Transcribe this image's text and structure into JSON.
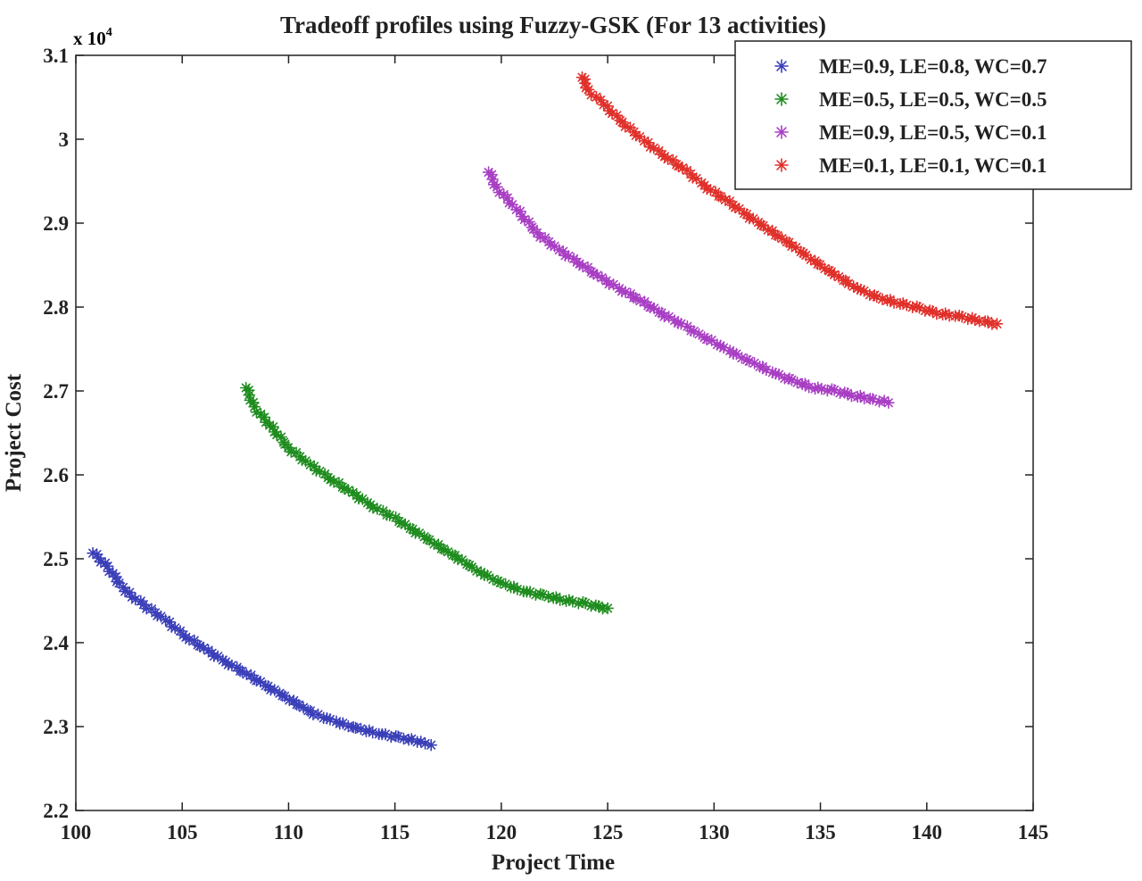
{
  "chart_data": {
    "type": "scatter",
    "title": "Tradeoff profiles using Fuzzy-GSK (For 13 activities)",
    "xlabel": "Project Time",
    "ylabel": "Project Cost",
    "y_multiplier_label": "x 10",
    "y_multiplier_exponent": "4",
    "xlim": [
      100,
      145
    ],
    "ylim": [
      2.2,
      3.1
    ],
    "x_ticks": [
      100,
      105,
      110,
      115,
      120,
      125,
      130,
      135,
      140,
      145
    ],
    "y_ticks": [
      2.2,
      2.3,
      2.4,
      2.5,
      2.6,
      2.7,
      2.8,
      2.9,
      3.0,
      3.1
    ],
    "x_tick_labels": [
      "100",
      "105",
      "110",
      "115",
      "120",
      "125",
      "130",
      "135",
      "140",
      "145"
    ],
    "y_tick_labels": [
      "2.2",
      "2.3",
      "2.4",
      "2.5",
      "2.6",
      "2.7",
      "2.8",
      "2.9",
      "3",
      "3.1"
    ],
    "marker": "*",
    "grid": false,
    "legend_position": "top-right",
    "series": [
      {
        "name": "ME=0.9, LE=0.8, WC=0.7",
        "color": "#3a3fb8",
        "points": [
          [
            100.8,
            2.508
          ],
          [
            101.5,
            2.49
          ],
          [
            102.3,
            2.462
          ],
          [
            103.2,
            2.445
          ],
          [
            104.2,
            2.427
          ],
          [
            105.2,
            2.407
          ],
          [
            106.2,
            2.39
          ],
          [
            107.2,
            2.375
          ],
          [
            108.2,
            2.36
          ],
          [
            109.2,
            2.345
          ],
          [
            110.2,
            2.33
          ],
          [
            111.2,
            2.315
          ],
          [
            112.2,
            2.306
          ],
          [
            113.2,
            2.298
          ],
          [
            114.2,
            2.292
          ],
          [
            115.2,
            2.287
          ],
          [
            116.0,
            2.283
          ],
          [
            116.7,
            2.278
          ]
        ]
      },
      {
        "name": "ME=0.5, LE=0.5, WC=0.5",
        "color": "#1e8c1e",
        "points": [
          [
            108.0,
            2.705
          ],
          [
            108.4,
            2.68
          ],
          [
            109.1,
            2.66
          ],
          [
            110.0,
            2.632
          ],
          [
            111.0,
            2.612
          ],
          [
            112.0,
            2.595
          ],
          [
            113.0,
            2.578
          ],
          [
            114.0,
            2.562
          ],
          [
            115.0,
            2.548
          ],
          [
            116.0,
            2.532
          ],
          [
            117.0,
            2.516
          ],
          [
            118.0,
            2.5
          ],
          [
            119.0,
            2.484
          ],
          [
            120.0,
            2.471
          ],
          [
            121.0,
            2.462
          ],
          [
            122.0,
            2.456
          ],
          [
            123.0,
            2.451
          ],
          [
            124.0,
            2.446
          ],
          [
            125.0,
            2.441
          ]
        ]
      },
      {
        "name": "ME=0.9, LE=0.5, WC=0.1",
        "color": "#a83ec4",
        "points": [
          [
            119.4,
            2.962
          ],
          [
            119.8,
            2.942
          ],
          [
            120.7,
            2.917
          ],
          [
            121.7,
            2.888
          ],
          [
            122.7,
            2.868
          ],
          [
            123.7,
            2.852
          ],
          [
            124.7,
            2.834
          ],
          [
            125.7,
            2.82
          ],
          [
            126.7,
            2.805
          ],
          [
            127.7,
            2.79
          ],
          [
            128.7,
            2.776
          ],
          [
            129.7,
            2.762
          ],
          [
            130.7,
            2.748
          ],
          [
            131.7,
            2.735
          ],
          [
            132.7,
            2.723
          ],
          [
            133.7,
            2.712
          ],
          [
            134.7,
            2.704
          ],
          [
            135.7,
            2.7
          ],
          [
            136.7,
            2.694
          ],
          [
            137.5,
            2.69
          ],
          [
            138.2,
            2.686
          ]
        ]
      },
      {
        "name": "ME=0.1, LE=0.1, WC=0.1",
        "color": "#e0302a",
        "points": [
          [
            123.8,
            3.075
          ],
          [
            124.1,
            3.058
          ],
          [
            124.8,
            3.042
          ],
          [
            125.7,
            3.02
          ],
          [
            126.7,
            2.998
          ],
          [
            127.7,
            2.98
          ],
          [
            128.7,
            2.962
          ],
          [
            129.7,
            2.942
          ],
          [
            130.7,
            2.925
          ],
          [
            131.7,
            2.907
          ],
          [
            132.7,
            2.89
          ],
          [
            133.7,
            2.873
          ],
          [
            134.7,
            2.855
          ],
          [
            135.7,
            2.838
          ],
          [
            136.7,
            2.823
          ],
          [
            137.7,
            2.811
          ],
          [
            138.7,
            2.805
          ],
          [
            139.7,
            2.798
          ],
          [
            140.7,
            2.792
          ],
          [
            141.7,
            2.788
          ],
          [
            142.7,
            2.783
          ],
          [
            143.3,
            2.78
          ]
        ]
      }
    ]
  }
}
